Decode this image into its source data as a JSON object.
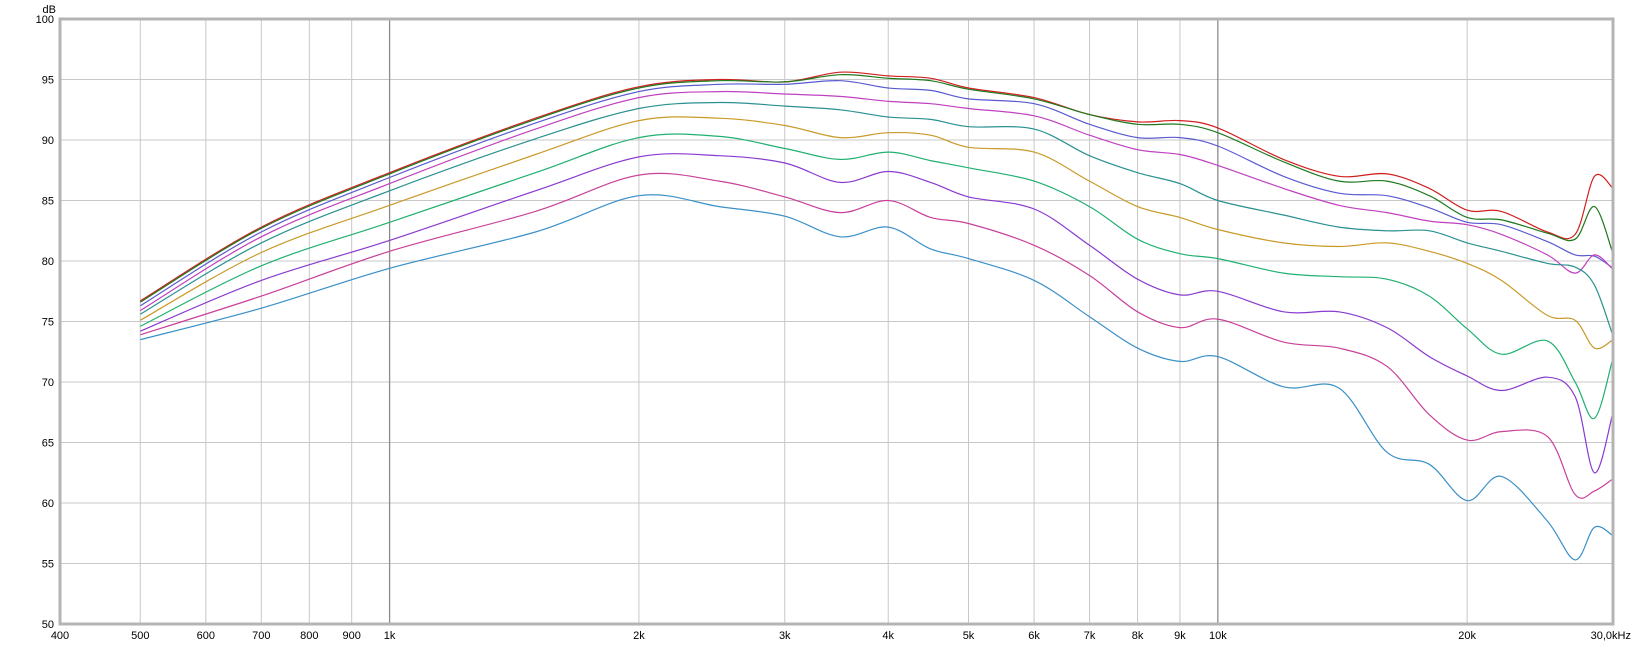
{
  "chart_data": {
    "type": "line",
    "x_scale": "log",
    "xlim": [
      400,
      30000
    ],
    "ylim": [
      50,
      100
    ],
    "y_unit_label": "dB",
    "grid": true,
    "legend": "none",
    "x_tick_values": [
      400,
      500,
      600,
      700,
      800,
      900,
      1000,
      2000,
      3000,
      4000,
      5000,
      6000,
      7000,
      8000,
      9000,
      10000,
      20000,
      30000
    ],
    "x_tick_labels": [
      "400",
      "500",
      "600",
      "700",
      "800",
      "900",
      "1k",
      "2k",
      "3k",
      "4k",
      "5k",
      "6k",
      "7k",
      "8k",
      "9k",
      "10k",
      "20k",
      "30,0kHz"
    ],
    "major_x_gridlines": [
      1000,
      10000
    ],
    "y_tick_values": [
      50,
      55,
      60,
      65,
      70,
      75,
      80,
      85,
      90,
      95,
      100
    ],
    "y_tick_labels": [
      "50",
      "55",
      "60",
      "65",
      "70",
      "75",
      "80",
      "85",
      "90",
      "95",
      "100"
    ],
    "colors": {
      "background": "#ffffff",
      "grid": "#c8c8c8",
      "major_grid": "#8c8c8c",
      "frame": "#b4b4b4"
    },
    "x": [
      500,
      700,
      1000,
      1500,
      2000,
      2500,
      3000,
      3500,
      4000,
      4500,
      5000,
      6000,
      7000,
      8000,
      9000,
      10000,
      12000,
      14000,
      16000,
      18000,
      20000,
      22000,
      25000,
      27000,
      28500,
      30000
    ],
    "series": [
      {
        "color": "#d02020",
        "values": [
          76.7,
          82.8,
          87.3,
          91.8,
          94.4,
          95.0,
          94.8,
          95.6,
          95.3,
          95.1,
          94.3,
          93.5,
          92.1,
          91.5,
          91.6,
          91.0,
          88.4,
          87.0,
          87.2,
          86.0,
          84.2,
          84.1,
          82.4,
          82.2,
          87.0,
          86.0
        ]
      },
      {
        "color": "#1f7a1f",
        "values": [
          76.6,
          82.7,
          87.2,
          91.7,
          94.3,
          94.9,
          94.8,
          95.4,
          95.1,
          94.9,
          94.2,
          93.4,
          92.1,
          91.3,
          91.3,
          90.6,
          88.2,
          86.6,
          86.6,
          85.4,
          83.6,
          83.4,
          82.3,
          81.8,
          84.5,
          80.6
        ]
      },
      {
        "color": "#5a5ad0",
        "values": [
          76.3,
          82.4,
          86.9,
          91.4,
          94.0,
          94.6,
          94.6,
          94.9,
          94.3,
          94.1,
          93.4,
          93.0,
          91.3,
          90.2,
          90.2,
          89.5,
          87.0,
          85.6,
          85.4,
          84.4,
          83.2,
          83.0,
          81.6,
          80.5,
          80.4,
          79.4
        ]
      },
      {
        "color": "#c040c0",
        "values": [
          75.9,
          82.0,
          86.4,
          90.9,
          93.5,
          94.0,
          93.8,
          93.6,
          93.2,
          93.0,
          92.6,
          92.0,
          90.4,
          89.2,
          88.8,
          87.9,
          86.0,
          84.6,
          84.0,
          83.3,
          83.0,
          82.2,
          80.5,
          79.0,
          80.5,
          79.3
        ]
      },
      {
        "color": "#2a9090",
        "values": [
          75.6,
          81.5,
          85.8,
          90.1,
          92.6,
          93.1,
          92.8,
          92.5,
          91.9,
          91.7,
          91.1,
          90.9,
          88.7,
          87.3,
          86.4,
          85.0,
          83.8,
          82.8,
          82.5,
          82.5,
          81.5,
          80.8,
          79.8,
          79.5,
          78.0,
          73.8
        ]
      },
      {
        "color": "#c89a28",
        "values": [
          75.1,
          80.7,
          84.6,
          88.8,
          91.6,
          91.8,
          91.2,
          90.2,
          90.6,
          90.4,
          89.4,
          89.0,
          86.6,
          84.5,
          83.6,
          82.6,
          81.5,
          81.2,
          81.5,
          80.8,
          79.8,
          78.4,
          75.5,
          75.1,
          72.8,
          73.5
        ]
      },
      {
        "color": "#20b070",
        "values": [
          74.6,
          79.6,
          83.2,
          87.3,
          90.2,
          90.3,
          89.3,
          88.4,
          89.0,
          88.3,
          87.7,
          86.6,
          84.5,
          81.8,
          80.6,
          80.2,
          79.0,
          78.7,
          78.5,
          77.1,
          74.4,
          72.3,
          73.4,
          70.0,
          67.0,
          72.0
        ]
      },
      {
        "color": "#8a3ad0",
        "values": [
          74.2,
          78.4,
          81.7,
          85.8,
          88.6,
          88.7,
          88.1,
          86.5,
          87.4,
          86.5,
          85.3,
          84.3,
          81.3,
          78.5,
          77.2,
          77.5,
          75.8,
          75.8,
          74.5,
          72.1,
          70.5,
          69.3,
          70.4,
          68.8,
          62.5,
          67.5
        ]
      },
      {
        "color": "#c8409a",
        "values": [
          73.9,
          77.1,
          80.8,
          84.1,
          87.1,
          86.6,
          85.3,
          84.0,
          85.0,
          83.6,
          83.1,
          81.3,
          78.8,
          75.8,
          74.5,
          75.2,
          73.3,
          72.8,
          71.3,
          67.3,
          65.2,
          65.9,
          65.5,
          60.7,
          61.0,
          62.0
        ]
      },
      {
        "color": "#3a90c8",
        "values": [
          73.5,
          76.1,
          79.4,
          82.4,
          85.4,
          84.5,
          83.7,
          82.0,
          82.8,
          81.0,
          80.2,
          78.4,
          75.4,
          72.8,
          71.7,
          72.1,
          69.6,
          69.5,
          64.2,
          63.2,
          60.2,
          62.2,
          58.5,
          55.3,
          58.0,
          57.3
        ]
      }
    ]
  }
}
